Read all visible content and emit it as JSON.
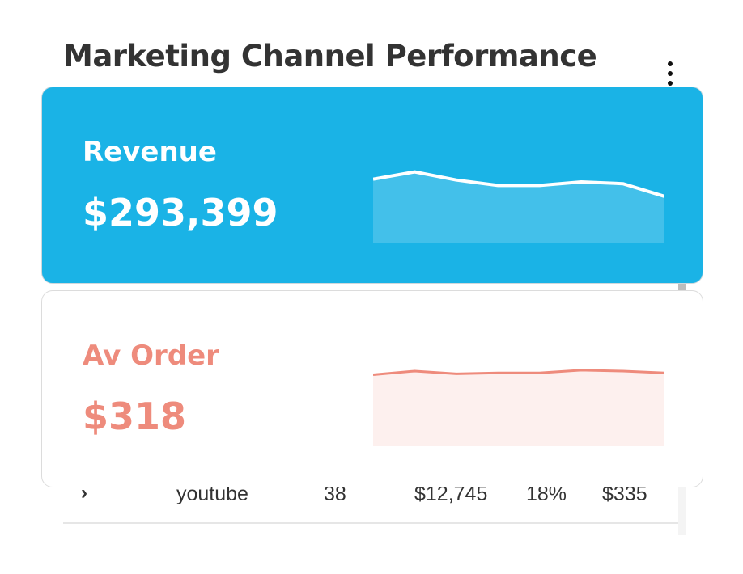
{
  "widget": {
    "title": "Marketing Channel Performance",
    "menu_icon": "kebab-menu-icon"
  },
  "cards": {
    "revenue": {
      "label": "Revenue",
      "value": "$293,399",
      "color": "#1ab3e6",
      "sparkline": [
        70,
        78,
        69,
        63,
        63,
        67,
        65,
        51
      ]
    },
    "av_order": {
      "label": "Av Order",
      "value": "$318",
      "color": "#ee8b7c",
      "sparkline": [
        79,
        83,
        80,
        81,
        81,
        84,
        83,
        81
      ]
    }
  },
  "table": {
    "rows": [
      {
        "expand_icon": "chevron-right-icon",
        "channel": "youtube",
        "orders": "38",
        "revenue": "$12,745",
        "percent": "18%",
        "av_order": "$335"
      }
    ]
  }
}
